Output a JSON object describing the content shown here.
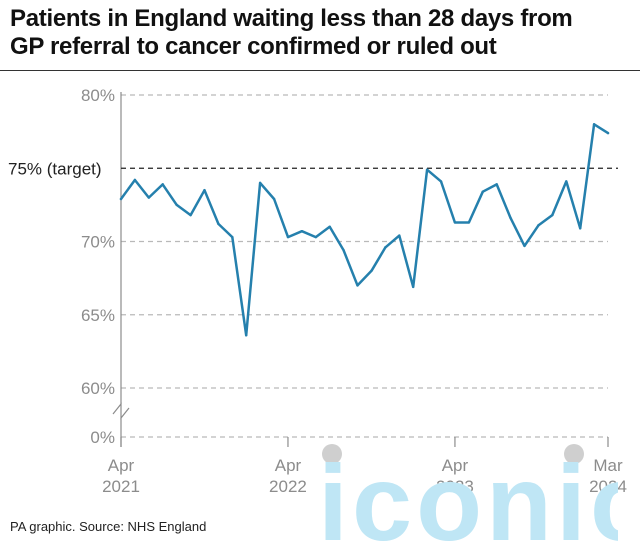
{
  "title_lines": [
    "Patients in England waiting less than 28 days from",
    "GP referral to cancer confirmed or ruled out"
  ],
  "source": "PA graphic. Source: NHS England",
  "watermark_text": "iconic",
  "colors": {
    "line": "#2580ad",
    "grid": "#b9b9b9",
    "axis": "#8c8c8c",
    "target": "#222222",
    "watermark": "#bfe6f5"
  },
  "chart_data": {
    "type": "line",
    "title": "Patients in England waiting less than 28 days from GP referral to cancer confirmed or ruled out",
    "xlabel": "",
    "ylabel": "",
    "y_axis_break": true,
    "ylim": [
      60,
      80
    ],
    "y_ticks": [
      {
        "value": 80,
        "label": "80%"
      },
      {
        "value": 75,
        "label": ""
      },
      {
        "value": 70,
        "label": "70%"
      },
      {
        "value": 65,
        "label": "65%"
      },
      {
        "value": 60,
        "label": "60%"
      }
    ],
    "y_zero_label": "0%",
    "target": {
      "value": 75,
      "label": "75% (target)"
    },
    "x_ticks": [
      {
        "index": 0,
        "label": [
          "Apr",
          "2021"
        ]
      },
      {
        "index": 12,
        "label": [
          "Apr",
          "2022"
        ]
      },
      {
        "index": 24,
        "label": [
          "Apr",
          "2023"
        ]
      },
      {
        "index": 35,
        "label": [
          "Mar",
          "2024"
        ]
      }
    ],
    "series": [
      {
        "name": "",
        "x": [
          "2021-04",
          "2021-05",
          "2021-06",
          "2021-07",
          "2021-08",
          "2021-09",
          "2021-10",
          "2021-11",
          "2021-12",
          "2022-01",
          "2022-02",
          "2022-03",
          "2022-04",
          "2022-05",
          "2022-06",
          "2022-07",
          "2022-08",
          "2022-09",
          "2022-10",
          "2022-11",
          "2022-12",
          "2023-01",
          "2023-02",
          "2023-03",
          "2023-04",
          "2023-05",
          "2023-06",
          "2023-07",
          "2023-08",
          "2023-09",
          "2023-10",
          "2023-11",
          "2023-12",
          "2024-01",
          "2024-02",
          "2024-03"
        ],
        "values": [
          72.9,
          74.2,
          73.0,
          73.9,
          72.5,
          71.8,
          73.5,
          71.2,
          70.3,
          63.6,
          74.0,
          72.9,
          70.3,
          70.7,
          70.3,
          71.0,
          69.4,
          67.0,
          68.0,
          69.6,
          70.4,
          66.9,
          74.9,
          74.1,
          71.3,
          71.3,
          73.4,
          73.9,
          71.6,
          69.7,
          71.1,
          71.8,
          74.1,
          70.9,
          78.0,
          77.4
        ]
      }
    ]
  }
}
